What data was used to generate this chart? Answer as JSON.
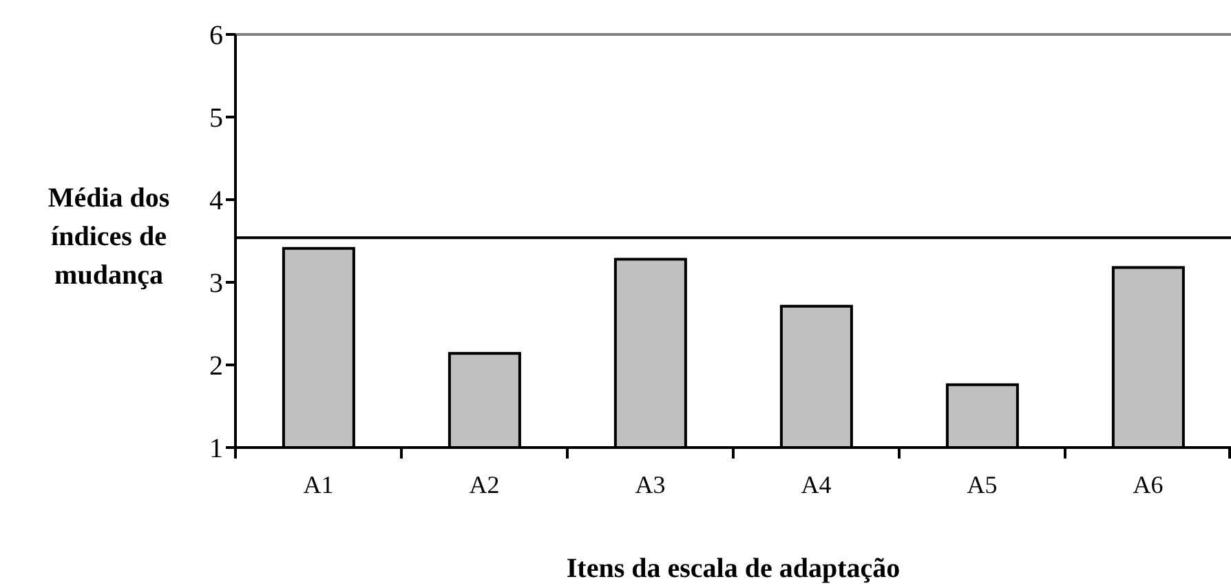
{
  "chart_data": {
    "type": "bar",
    "xlabel": "Itens da escala de adaptação",
    "ylabel": "Média dos índices de mudança",
    "categories": [
      "A1",
      "A2",
      "A3",
      "A4",
      "A5",
      "A6"
    ],
    "values": [
      3.41,
      2.14,
      3.28,
      2.71,
      1.76,
      3.18
    ],
    "color": "#c0c0c0",
    "ylim": [
      1,
      6
    ],
    "yticks": [
      1,
      2,
      3,
      4,
      5,
      6
    ],
    "ref_lines": [
      {
        "axis": "y",
        "value": 3.54,
        "color": "#000000"
      },
      {
        "axis": "y",
        "value": 6,
        "color": "#808080"
      }
    ],
    "grid": false,
    "legend": false
  }
}
